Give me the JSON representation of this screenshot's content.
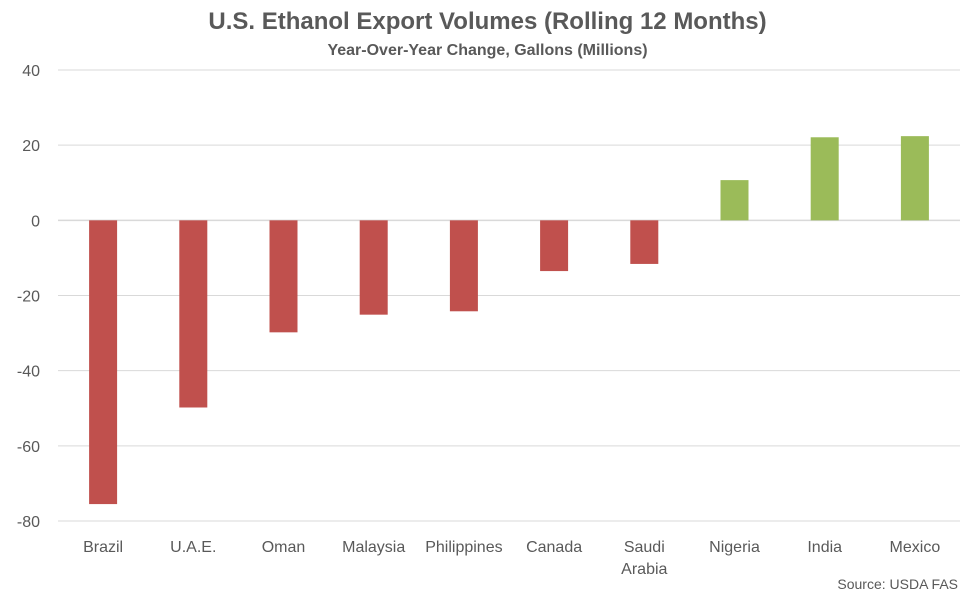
{
  "chart_data": {
    "type": "bar",
    "title": "U.S. Ethanol Export Volumes (Rolling 12 Months)",
    "subtitle": "Year-Over-Year Change, Gallons  (Millions)",
    "categories": [
      "Brazil",
      "U.A.E.",
      "Oman",
      "Malaysia",
      "Philippines",
      "Canada",
      "Saudi Arabia",
      "Nigeria",
      "India",
      "Mexico"
    ],
    "values": [
      -75.5,
      -49.8,
      -29.8,
      -25.1,
      -24.2,
      -13.5,
      -11.6,
      10.7,
      22.1,
      22.4
    ],
    "ylim": [
      -80,
      40
    ],
    "yticks": [
      40,
      20,
      0,
      -20,
      -40,
      -60,
      -80
    ],
    "xlabel": "",
    "ylabel": "",
    "grid": true,
    "colors": {
      "negative": "#C0504D",
      "positive": "#9BBB59",
      "grid": "#D9D9D9",
      "text": "#595959"
    },
    "source": "Source: USDA FAS"
  }
}
